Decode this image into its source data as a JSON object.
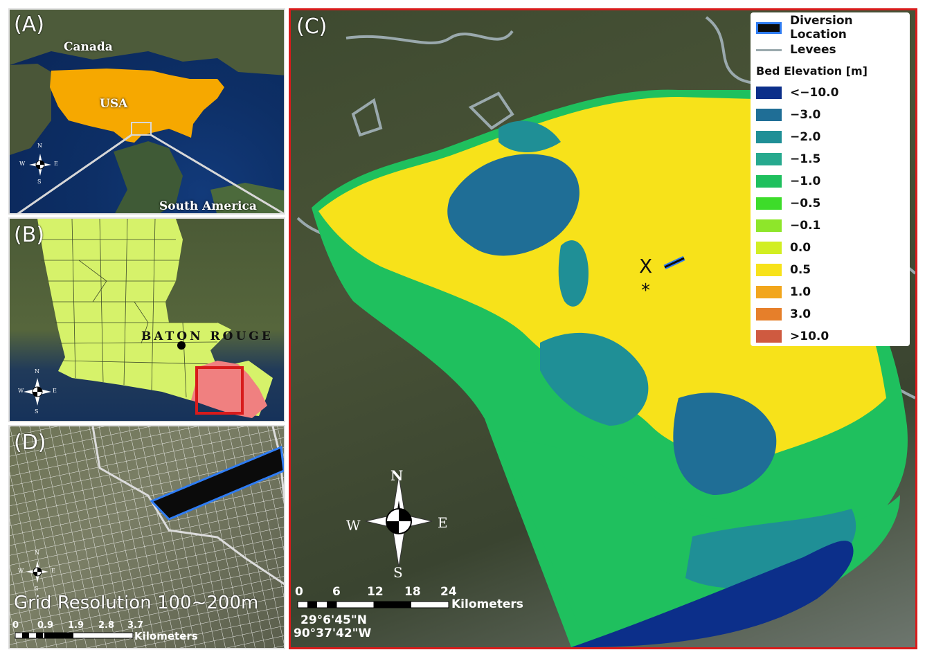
{
  "panels": {
    "a": {
      "letter": "(A)",
      "labels": {
        "canada": "Canada",
        "usa": "USA",
        "south_america": "South America"
      },
      "compass": {
        "n": "N",
        "s": "S",
        "e": "E",
        "w": "W"
      }
    },
    "b": {
      "letter": "(B)",
      "city": "BATON ROUGE",
      "compass": {
        "n": "N",
        "s": "S",
        "e": "E",
        "w": "W"
      }
    },
    "c": {
      "letter": "(C)",
      "compass": {
        "n": "N",
        "s": "S",
        "e": "E",
        "w": "W"
      },
      "markers": {
        "x": "X",
        "star": "*"
      },
      "scale": {
        "ticks": [
          "0",
          "6",
          "12",
          "18",
          "24"
        ],
        "unit": "Kilometers"
      },
      "coords": {
        "lat": "29°6'45\"N",
        "lon": "90°37'42\"W"
      }
    },
    "d": {
      "letter": "(D)",
      "caption": "Grid Resolution 100~200m",
      "compass": {
        "n": "N",
        "s": "S",
        "e": "E",
        "w": "W"
      },
      "scale": {
        "ticks": [
          "0",
          "0.9",
          "1.9",
          "2.8",
          "3.7"
        ],
        "unit": "Kilometers"
      }
    }
  },
  "legend": {
    "diversion": "Diversion Location",
    "levees": "Levees",
    "title": "Bed Elevation [m]",
    "classes": [
      {
        "label": "<−10.0",
        "color": "#0c2f8a"
      },
      {
        "label": "−3.0",
        "color": "#1f6e96"
      },
      {
        "label": "−2.0",
        "color": "#1f8f96"
      },
      {
        "label": "−1.5",
        "color": "#26a98e"
      },
      {
        "label": "−1.0",
        "color": "#1fc05e"
      },
      {
        "label": "−0.5",
        "color": "#3ddc2a"
      },
      {
        "label": "−0.1",
        "color": "#8ee62a"
      },
      {
        "label": "0.0",
        "color": "#d2ee22"
      },
      {
        "label": "0.5",
        "color": "#f7e21a"
      },
      {
        "label": "1.0",
        "color": "#f2a61c"
      },
      {
        "label": "3.0",
        "color": "#e67f2a"
      },
      {
        "label": ">10.0",
        "color": "#cf5a40"
      }
    ]
  },
  "colors": {
    "usa": "#f6a800",
    "louisiana": "#d6f26a",
    "study_area": "#f08080",
    "frame": "#d81b1b",
    "diversion_outline": "#2f7cf2",
    "levee": "#9aa9ad"
  }
}
